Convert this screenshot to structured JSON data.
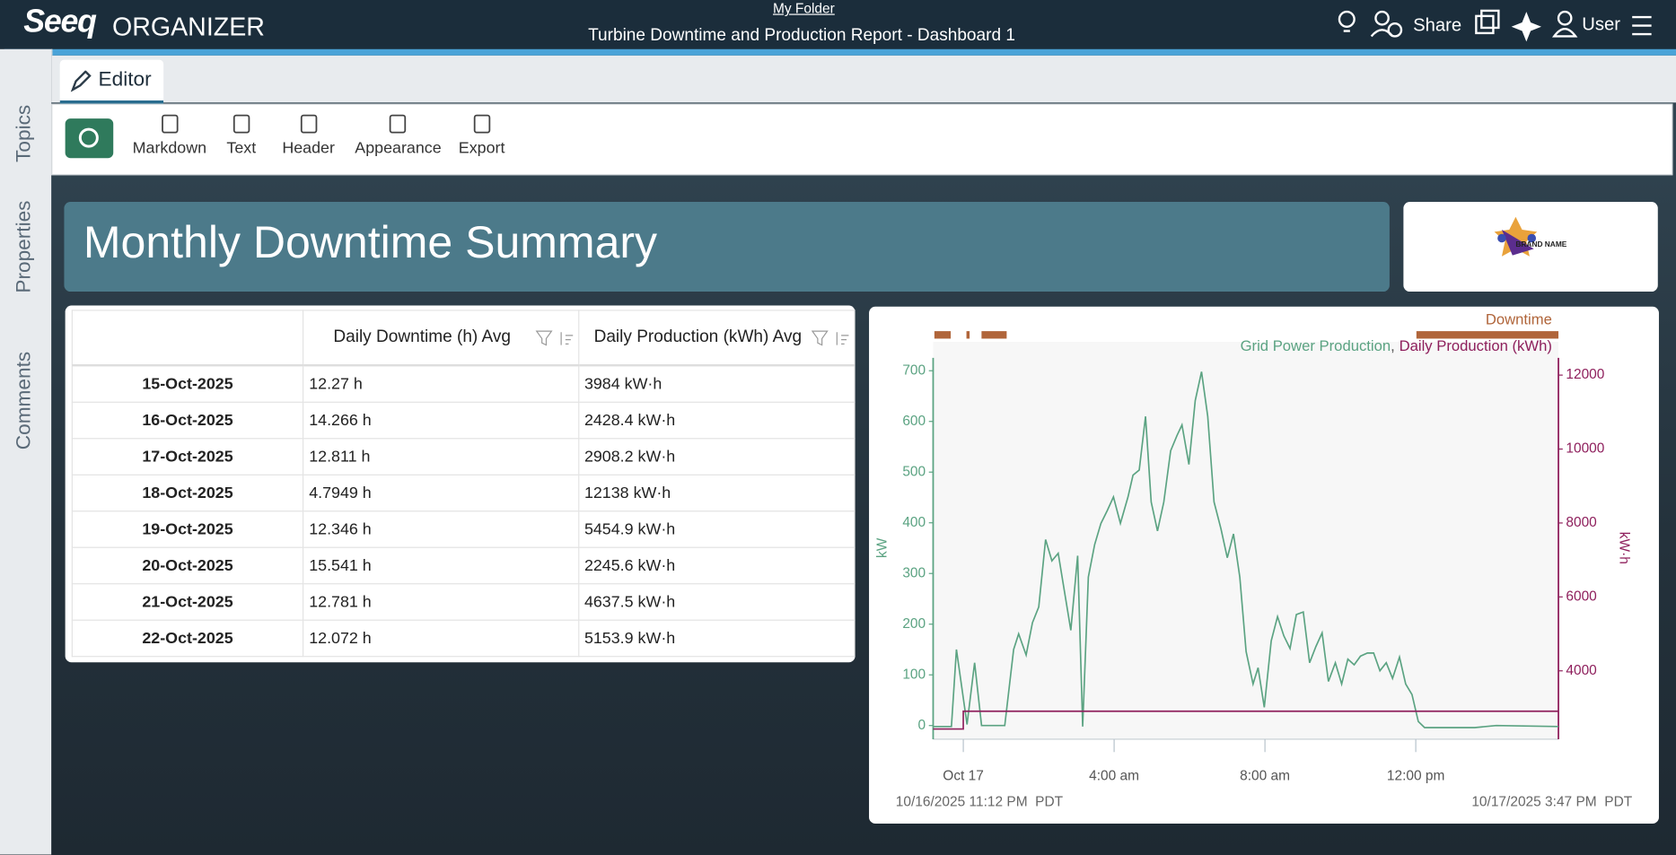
{
  "header": {
    "logo": "Seeq",
    "app": "ORGANIZER",
    "folder": "My Folder",
    "title": "Turbine Downtime and Production Report - Dashboard 1",
    "share": "Share",
    "user": "User"
  },
  "sidebar": [
    "Topics",
    "Properties",
    "Comments"
  ],
  "tab": "Editor",
  "toolbar": [
    "Markdown",
    "Text",
    "Header",
    "Appearance",
    "Export"
  ],
  "banner": {
    "title": "Monthly Downtime Summary",
    "brand": "BRAND NAME"
  },
  "table": {
    "columns": [
      "Daily Downtime (h) Avg",
      "Daily Production (kWh) Avg"
    ],
    "rows": [
      [
        "15-Oct-2025",
        "12.27 h",
        "3984 kW·h"
      ],
      [
        "16-Oct-2025",
        "14.266 h",
        "2428.4 kW·h"
      ],
      [
        "17-Oct-2025",
        "12.811 h",
        "2908.2 kW·h"
      ],
      [
        "18-Oct-2025",
        "4.7949 h",
        "12138 kW·h"
      ],
      [
        "19-Oct-2025",
        "12.346 h",
        "5454.9 kW·h"
      ],
      [
        "20-Oct-2025",
        "15.541 h",
        "2245.6 kW·h"
      ],
      [
        "21-Oct-2025",
        "12.781 h",
        "4637.5 kW·h"
      ],
      [
        "22-Oct-2025",
        "12.072 h",
        "5153.9 kW·h"
      ]
    ]
  },
  "chart_data": {
    "type": "line",
    "ylabel": "kW",
    "y2label": "kW·h",
    "xlim": [
      {
        "value": "2025-10-16T23:12",
        "label": "10/16/2025 11:12 PM  PDT"
      },
      {
        "value": "2025-10-17T15:47",
        "label": "10/17/2025 3:47 PM  PDT"
      }
    ],
    "xticks": [
      {
        "value": "2025-10-17T00:00",
        "label": "Oct 17"
      },
      {
        "value": "2025-10-17T04:00",
        "label": "4:00 am"
      },
      {
        "value": "2025-10-17T08:00",
        "label": "8:00 am"
      },
      {
        "value": "2025-10-17T12:00",
        "label": "12:00 pm"
      }
    ],
    "ylim": [
      -27,
      757
    ],
    "yticks": [
      0,
      100,
      200,
      300,
      400,
      500,
      600,
      700
    ],
    "y2lim": [
      2150,
      12900
    ],
    "y2ticks": [
      4000,
      6000,
      8000,
      10000,
      12000
    ],
    "legend_separator": ",",
    "capsules": {
      "name": "Downtime",
      "color": "#b0653a",
      "intervals": [
        [
          "2025-10-16T23:14",
          "2025-10-16T23:40"
        ],
        [
          "2025-10-17T00:05",
          "2025-10-17T00:10"
        ],
        [
          "2025-10-17T00:29",
          "2025-10-17T01:09"
        ],
        [
          "2025-10-17T12:01",
          "2025-10-17T15:47"
        ]
      ]
    },
    "series": [
      {
        "name": "Grid Power Production",
        "color": "#5ba382",
        "x": [
          "2025-10-16T23:12",
          "2025-10-16T23:41",
          "2025-10-16T23:49",
          "2025-10-17T00:06",
          "2025-10-17T00:18",
          "2025-10-17T00:29",
          "2025-10-17T01:06",
          "2025-10-17T01:20",
          "2025-10-17T01:28",
          "2025-10-17T01:40",
          "2025-10-17T01:50",
          "2025-10-17T02:00",
          "2025-10-17T02:11",
          "2025-10-17T02:21",
          "2025-10-17T02:31",
          "2025-10-17T02:51",
          "2025-10-17T03:02",
          "2025-10-17T03:10",
          "2025-10-17T03:19",
          "2025-10-17T03:29",
          "2025-10-17T03:39",
          "2025-10-17T03:49",
          "2025-10-17T03:59",
          "2025-10-17T04:10",
          "2025-10-17T04:22",
          "2025-10-17T04:30",
          "2025-10-17T04:40",
          "2025-10-17T04:50",
          "2025-10-17T04:59",
          "2025-10-17T05:09",
          "2025-10-17T05:19",
          "2025-10-17T05:30",
          "2025-10-17T05:40",
          "2025-10-17T05:48",
          "2025-10-17T05:59",
          "2025-10-17T06:09",
          "2025-10-17T06:19",
          "2025-10-17T06:29",
          "2025-10-17T06:39",
          "2025-10-17T06:50",
          "2025-10-17T07:00",
          "2025-10-17T07:10",
          "2025-10-17T07:20",
          "2025-10-17T07:30",
          "2025-10-17T07:41",
          "2025-10-17T07:49",
          "2025-10-17T07:59",
          "2025-10-17T08:10",
          "2025-10-17T08:20",
          "2025-10-17T08:30",
          "2025-10-17T08:40",
          "2025-10-17T08:50",
          "2025-10-17T09:01",
          "2025-10-17T09:11",
          "2025-10-17T09:21",
          "2025-10-17T09:31",
          "2025-10-17T09:41",
          "2025-10-17T09:52",
          "2025-10-17T10:02",
          "2025-10-17T10:12",
          "2025-10-17T10:22",
          "2025-10-17T10:32",
          "2025-10-17T10:43",
          "2025-10-17T10:53",
          "2025-10-17T11:03",
          "2025-10-17T11:13",
          "2025-10-17T11:23",
          "2025-10-17T11:34",
          "2025-10-17T11:44",
          "2025-10-17T11:54",
          "2025-10-17T12:04",
          "2025-10-17T12:14",
          "2025-10-17T13:34",
          "2025-10-17T14:08",
          "2025-10-17T15:47"
        ],
        "values": [
          -2,
          -2,
          150,
          2,
          124,
          0,
          0,
          150,
          181,
          139,
          203,
          234,
          367,
          325,
          340,
          188,
          335,
          -2,
          293,
          357,
          399,
          424,
          451,
          399,
          451,
          494,
          504,
          610,
          441,
          384,
          441,
          542,
          572,
          593,
          515,
          641,
          698,
          610,
          441,
          388,
          331,
          378,
          293,
          146,
          82,
          114,
          36,
          167,
          215,
          177,
          152,
          219,
          224,
          124,
          156,
          183,
          87,
          124,
          82,
          131,
          120,
          137,
          143,
          143,
          108,
          124,
          93,
          135,
          82,
          61,
          8,
          -4,
          -4,
          0,
          -2
        ]
      },
      {
        "name": "Daily Production (kWh)",
        "color": "#8e1f5c",
        "axis": "y2",
        "x": [
          "2025-10-16T23:12",
          "2025-10-17T00:00",
          "2025-10-17T00:00",
          "2025-10-17T15:47"
        ],
        "values": [
          2428.4,
          2428.4,
          2908.2,
          2908.2
        ]
      }
    ]
  }
}
